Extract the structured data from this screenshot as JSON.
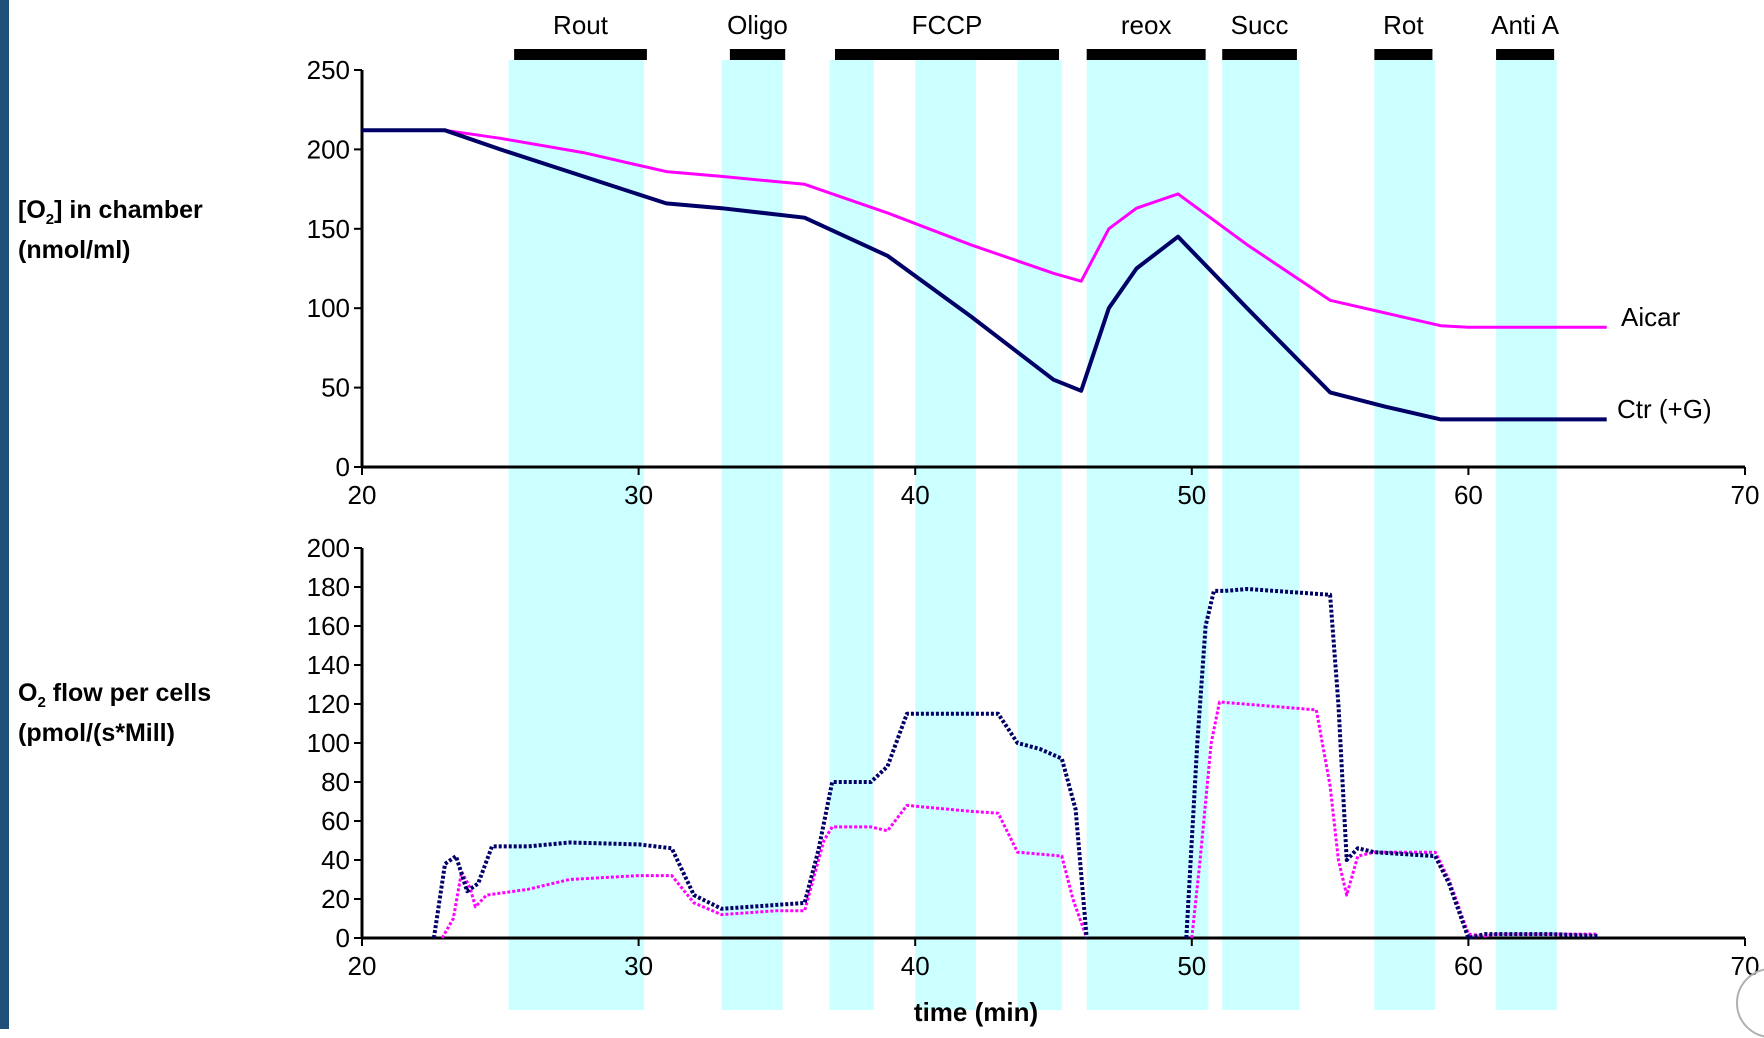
{
  "colors": {
    "ctr": "#000066",
    "aicar": "#ff00ff",
    "band": "#ccffff",
    "bar": "#000000"
  },
  "phases": [
    {
      "label": "Rout",
      "bar": [
        25.5,
        30.3
      ]
    },
    {
      "label": "Oligo",
      "bar": [
        33.3,
        35.3
      ]
    },
    {
      "label": "FCCP",
      "bar": [
        37.1,
        45.2
      ]
    },
    {
      "label": "reox",
      "bar": [
        46.2,
        50.5
      ]
    },
    {
      "label": "Succ",
      "bar": [
        51.1,
        53.8
      ]
    },
    {
      "label": "Rot",
      "bar": [
        56.6,
        58.7
      ]
    },
    {
      "label": "Anti A",
      "bar": [
        61.0,
        63.1
      ]
    }
  ],
  "shaded_bands": [
    [
      25.3,
      30.2
    ],
    [
      33.0,
      35.2
    ],
    [
      36.9,
      38.5
    ],
    [
      40.0,
      42.2
    ],
    [
      43.7,
      45.3
    ],
    [
      46.2,
      50.6
    ],
    [
      51.1,
      53.9
    ],
    [
      56.6,
      58.8
    ],
    [
      61.0,
      63.2
    ]
  ],
  "chart_data": [
    {
      "type": "line",
      "ylabel_main": "[O",
      "ylabel_sub": "2",
      "ylabel_rest": "] in chamber",
      "ylabel_line2": "(nmol/ml)",
      "xlabel": "",
      "xlim": [
        20,
        70
      ],
      "ylim": [
        0,
        250
      ],
      "xticks": [
        "20",
        "30",
        "40",
        "50",
        "60",
        "70"
      ],
      "yticks": [
        "0",
        "50",
        "100",
        "150",
        "200",
        "250"
      ],
      "series": [
        {
          "name": "Aicar",
          "key": "aicar",
          "x": [
            20,
            23,
            25,
            28,
            31,
            33,
            36,
            39,
            42,
            45,
            46,
            47,
            48,
            49.5,
            52,
            55,
            57,
            59,
            60,
            63,
            65
          ],
          "y": [
            212,
            212,
            207,
            198,
            186,
            183,
            178,
            160,
            140,
            122,
            117,
            150,
            163,
            172,
            140,
            105,
            97,
            89,
            88,
            88,
            88
          ]
        },
        {
          "name": "Ctr (+G)",
          "key": "ctr",
          "x": [
            20,
            23,
            25,
            28,
            31,
            33,
            36,
            39,
            42,
            45,
            46,
            47,
            48,
            49.5,
            52,
            55,
            57,
            59,
            60,
            63,
            65
          ],
          "y": [
            212,
            212,
            200,
            183,
            166,
            163,
            157,
            133,
            95,
            55,
            48,
            100,
            125,
            145,
            100,
            47,
            38,
            30,
            30,
            30,
            30
          ]
        }
      ],
      "series_labels": [
        "Aicar",
        "Ctr (+G)"
      ]
    },
    {
      "type": "scatter",
      "ylabel_main": "O",
      "ylabel_sub": "2",
      "ylabel_rest": " flow per cells",
      "ylabel_line2": "(pmol/(s*Mill)",
      "xlabel": "time (min)",
      "xlim": [
        20,
        70
      ],
      "ylim": [
        0,
        200
      ],
      "xticks": [
        "20",
        "30",
        "40",
        "50",
        "60",
        "70"
      ],
      "yticks": [
        "0",
        "20",
        "40",
        "60",
        "80",
        "100",
        "120",
        "140",
        "160",
        "180",
        "200"
      ],
      "series": [
        {
          "name": "Aicar",
          "key": "aicar",
          "x": [
            22.9,
            23.3,
            23.6,
            23.9,
            24.1,
            24.5,
            26,
            27.5,
            30,
            31.2,
            32,
            33,
            35,
            36,
            36.7,
            37,
            38.4,
            39,
            39.7,
            42,
            43,
            43.7,
            44.5,
            45.3,
            45.7,
            46.2
          ],
          "y": [
            0,
            10,
            34,
            26,
            16,
            22,
            25,
            30,
            32,
            32,
            18,
            12,
            14,
            14,
            50,
            57,
            57,
            55,
            68,
            65,
            64,
            44,
            43,
            42,
            20,
            0
          ]
        },
        {
          "name": "Ctr (+G)",
          "key": "ctr",
          "x": [
            22.6,
            23,
            23.4,
            23.8,
            24.2,
            24.7,
            26,
            27.5,
            30,
            31.2,
            32,
            33,
            35,
            36,
            36.5,
            37,
            38.4,
            39,
            39.7,
            42,
            43,
            43.7,
            44.5,
            45.3,
            45.8,
            46.2
          ],
          "y": [
            0,
            38,
            42,
            24,
            28,
            47,
            47,
            49,
            48,
            46,
            22,
            15,
            17,
            18,
            45,
            80,
            80,
            88,
            115,
            115,
            115,
            100,
            97,
            92,
            66,
            0
          ]
        },
        {
          "name": "Aicar",
          "key": "aicar",
          "x": [
            50.0,
            50.3,
            50.7,
            51,
            54.5,
            55,
            55.3,
            55.6,
            56,
            56.6,
            58.8,
            59.3,
            60,
            60.6,
            61,
            63,
            64.7
          ],
          "y": [
            0,
            40,
            100,
            121,
            117,
            78,
            40,
            22,
            42,
            44,
            44,
            30,
            2,
            1,
            2,
            2,
            2
          ]
        },
        {
          "name": "Ctr (+G)",
          "key": "ctr",
          "x": [
            49.8,
            50.2,
            50.5,
            50.8,
            51.2,
            52,
            55,
            55.3,
            55.6,
            56,
            56.6,
            58.8,
            59.3,
            60,
            60.6,
            61,
            63,
            64.7
          ],
          "y": [
            0,
            100,
            160,
            178,
            178,
            179,
            176,
            120,
            40,
            46,
            44,
            42,
            28,
            0,
            2,
            2,
            2,
            1
          ]
        }
      ]
    }
  ]
}
